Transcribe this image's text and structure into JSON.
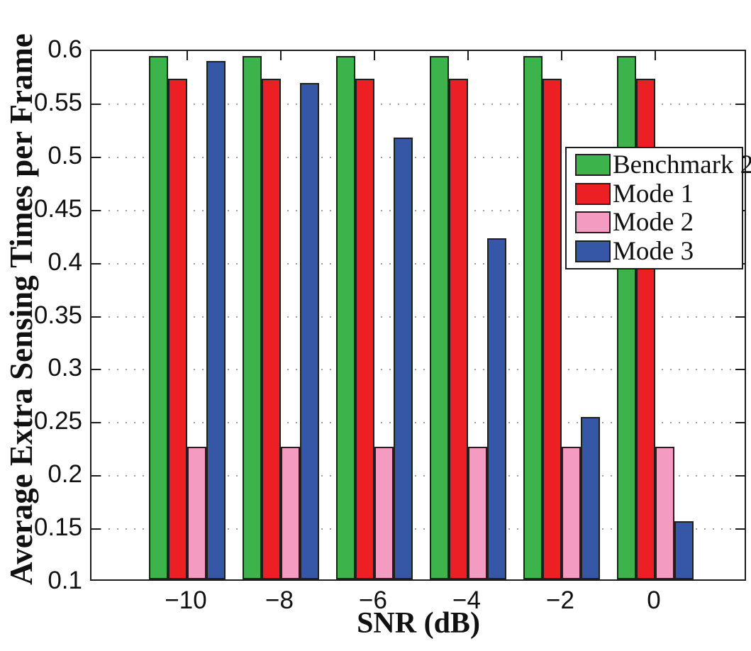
{
  "figure": {
    "background": "#ffffff"
  },
  "chart_data": {
    "type": "bar",
    "title": "",
    "xlabel": "SNR (dB)",
    "ylabel": "Average Extra Sensing Times per Frame",
    "x_values": [
      -10,
      -8,
      -6,
      -4,
      -2,
      0
    ],
    "x_tick_labels": [
      "−10",
      "−8",
      "−6",
      "−4",
      "−2",
      "0"
    ],
    "y_tick_labels": [
      "0.1",
      "0.15",
      "0.2",
      "0.25",
      "0.3",
      "0.35",
      "0.4",
      "0.45",
      "0.5",
      "0.55",
      "0.6"
    ],
    "ylim": [
      0.1,
      0.6
    ],
    "ytick_step": 0.05,
    "grid": "horizontal-dotted",
    "legend_position": "upper-right",
    "series": [
      {
        "name": "Benchmark 2",
        "color": "#3CB44B",
        "values": [
          0.593,
          0.593,
          0.593,
          0.593,
          0.593,
          0.593
        ]
      },
      {
        "name": "Mode 1",
        "color": "#EC2024",
        "values": [
          0.571,
          0.571,
          0.571,
          0.571,
          0.571,
          0.571
        ]
      },
      {
        "name": "Mode 2",
        "color": "#F49BC1",
        "values": [
          0.225,
          0.225,
          0.225,
          0.225,
          0.225,
          0.225
        ]
      },
      {
        "name": "Mode 3",
        "color": "#3656A6",
        "values": [
          0.588,
          0.567,
          0.516,
          0.421,
          0.253,
          0.155
        ]
      }
    ],
    "bar_edge_color": "#1f1f1f",
    "axis_color": "#1c1c1c",
    "grid_color": "#9e9e9e"
  }
}
